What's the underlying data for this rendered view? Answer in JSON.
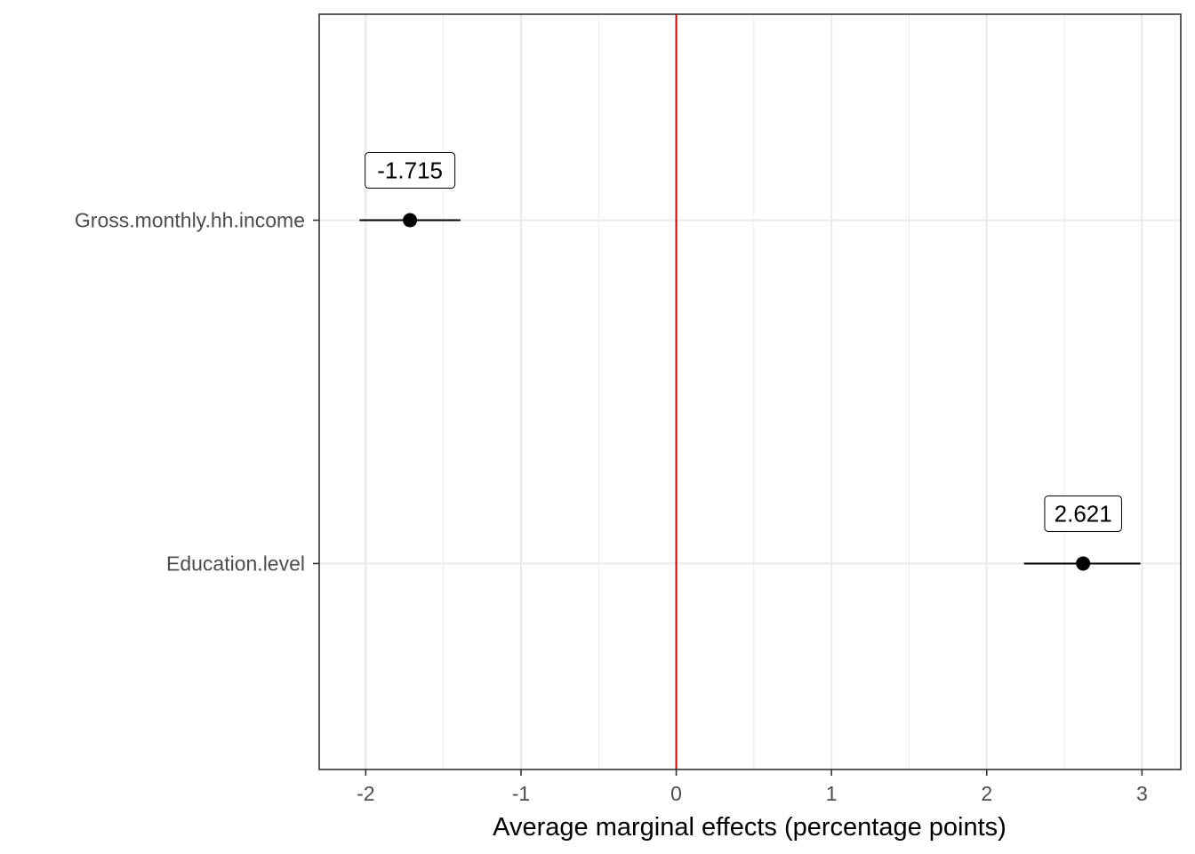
{
  "chart_data": {
    "type": "scatter",
    "title": "",
    "xlabel": "Average marginal effects (percentage points)",
    "ylabel": "",
    "xlim": [
      -2.3,
      3.25
    ],
    "x_ticks": [
      -2,
      -1,
      0,
      1,
      2,
      3
    ],
    "x_tick_labels": [
      "-2",
      "-1",
      "0",
      "1",
      "2",
      "3"
    ],
    "categories": [
      "Gross.monthly.hh.income",
      "Education.level"
    ],
    "series": [
      {
        "values": [
          -1.715,
          2.621
        ],
        "ci_low": [
          -2.04,
          2.24
        ],
        "ci_high": [
          -1.39,
          2.99
        ],
        "labels": [
          "-1.715",
          "2.621"
        ]
      }
    ],
    "reference_line": {
      "x": 0,
      "color": "#cc0000"
    },
    "grid": true,
    "legend": "none",
    "colors": {
      "point": "#000000",
      "grid": "#ebebeb",
      "panel_border": "#333333",
      "tick_text": "#4d4d4d"
    }
  }
}
